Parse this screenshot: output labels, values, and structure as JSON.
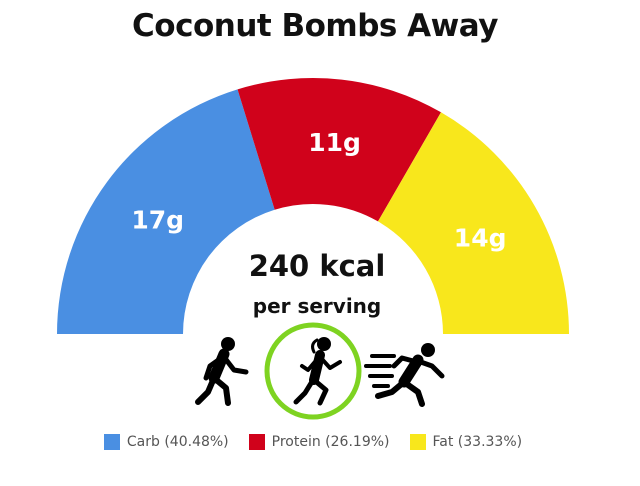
{
  "title": "Coconut Bombs Away",
  "chart_data": {
    "type": "pie",
    "style": "semicircle-gauge",
    "title": "Coconut Bombs Away",
    "categories": [
      "Carb",
      "Protein",
      "Fat"
    ],
    "values": [
      17,
      11,
      14
    ],
    "unit": "g",
    "slice_labels": [
      "17g",
      "11g",
      "14g"
    ],
    "percentages": [
      40.48,
      26.19,
      33.33
    ],
    "colors": [
      "#4a8fe2",
      "#d0021b",
      "#f8e71c"
    ],
    "legend": [
      "Carb (40.48%)",
      "Protein (26.19%)",
      "Fat (33.33%)"
    ],
    "legend_placement": "bottom",
    "center_value": "240 kcal",
    "center_subtitle": "per serving"
  },
  "activity_icons": {
    "names": [
      "walking-person-icon",
      "running-woman-icon",
      "sprinting-person-icon"
    ],
    "selected": "running-woman-icon",
    "selected_ring_color": "#7ed321"
  }
}
